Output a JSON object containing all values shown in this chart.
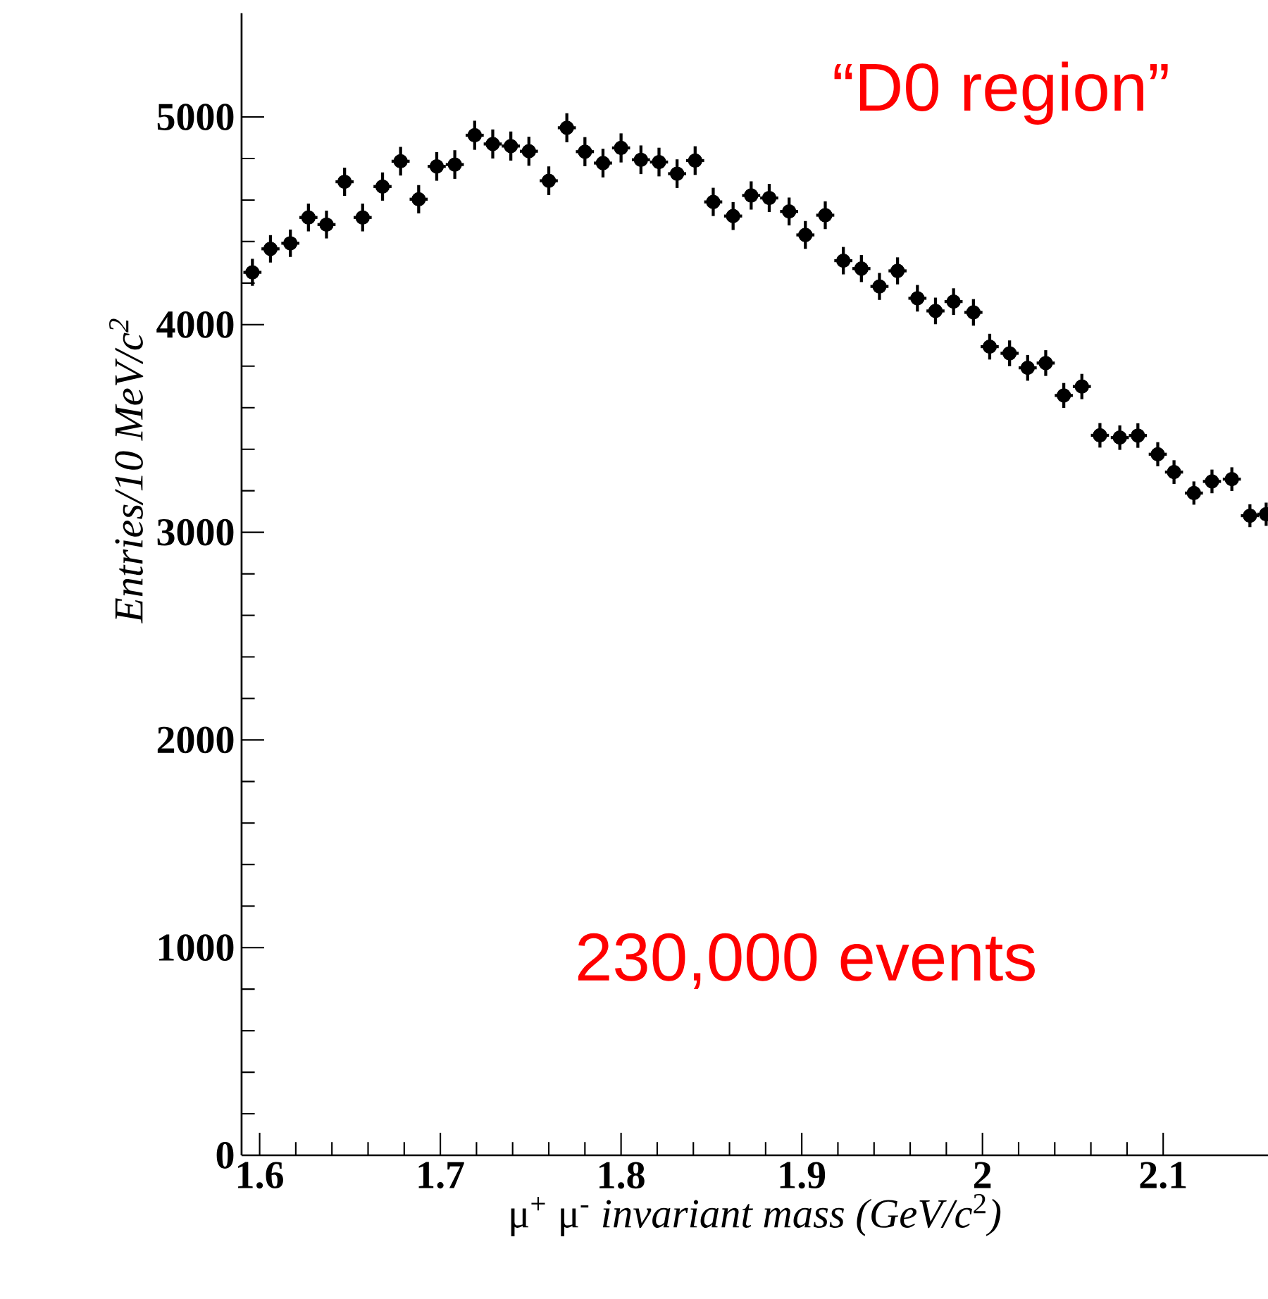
{
  "chart_data": {
    "type": "scatter",
    "xlabel": "μ$^{+}$ μ$^{-}$ *invariant mass (GeV/c*$^{2}$*)*",
    "ylabel": "Entries/10 MeV/c$^{2}$",
    "annotations": [
      "“D0 region”",
      "230,000 events"
    ],
    "x": [
      1.596,
      1.606,
      1.617,
      1.627,
      1.637,
      1.647,
      1.657,
      1.668,
      1.678,
      1.688,
      1.698,
      1.708,
      1.719,
      1.729,
      1.739,
      1.749,
      1.76,
      1.77,
      1.78,
      1.79,
      1.8,
      1.811,
      1.821,
      1.831,
      1.841,
      1.851,
      1.862,
      1.872,
      1.882,
      1.893,
      1.902,
      1.913,
      1.923,
      1.933,
      1.943,
      1.953,
      1.964,
      1.974,
      1.984,
      1.995,
      2.004,
      2.015,
      2.025,
      2.035,
      2.045,
      2.055,
      2.065,
      2.076,
      2.086,
      2.097,
      2.106,
      2.117,
      2.127,
      2.138,
      2.148,
      2.157
    ],
    "values": [
      4252,
      4365,
      4392,
      4516,
      4482,
      4688,
      4516,
      4665,
      4787,
      4604,
      4762,
      4771,
      4912,
      4870,
      4860,
      4835,
      4693,
      4948,
      4833,
      4778,
      4851,
      4794,
      4783,
      4727,
      4790,
      4591,
      4523,
      4622,
      4610,
      4545,
      4432,
      4527,
      4308,
      4270,
      4184,
      4259,
      4127,
      4066,
      4111,
      4059,
      3894,
      3862,
      3792,
      3815,
      3659,
      3702,
      3467,
      3456,
      3466,
      3376,
      3290,
      3189,
      3245,
      3256,
      3080,
      3087
    ],
    "errors": [
      65,
      66,
      66,
      67,
      67,
      68,
      67,
      68,
      69,
      68,
      69,
      69,
      70,
      70,
      70,
      70,
      69,
      70,
      70,
      69,
      70,
      69,
      69,
      69,
      69,
      68,
      67,
      68,
      68,
      67,
      67,
      67,
      66,
      65,
      65,
      65,
      64,
      64,
      64,
      64,
      62,
      62,
      62,
      62,
      60,
      61,
      59,
      59,
      59,
      58,
      57,
      56,
      57,
      57,
      55,
      56
    ],
    "xerrors": [
      0.005,
      0.005,
      0.005,
      0.005,
      0.005,
      0.005,
      0.005,
      0.005,
      0.005,
      0.005,
      0.005,
      0.005,
      0.005,
      0.005,
      0.005,
      0.005,
      0.005,
      0.005,
      0.005,
      0.005,
      0.005,
      0.005,
      0.005,
      0.005,
      0.005,
      0.005,
      0.005,
      0.005,
      0.005,
      0.005,
      0.005,
      0.005,
      0.005,
      0.005,
      0.005,
      0.005,
      0.005,
      0.005,
      0.005,
      0.005,
      0.005,
      0.005,
      0.005,
      0.005,
      0.005,
      0.005,
      0.005,
      0.005,
      0.005,
      0.005,
      0.005,
      0.005,
      0.005,
      0.005,
      0.005,
      0.005
    ],
    "color": "#000000",
    "marker": "circle",
    "xlim": [
      1.59,
      2.158
    ],
    "ylim": [
      0,
      5500
    ],
    "xticks": [
      1.6,
      1.7,
      1.8,
      1.9,
      2,
      2.1
    ],
    "yticks": [
      0,
      1000,
      2000,
      3000,
      4000,
      5000
    ],
    "grid": false
  }
}
